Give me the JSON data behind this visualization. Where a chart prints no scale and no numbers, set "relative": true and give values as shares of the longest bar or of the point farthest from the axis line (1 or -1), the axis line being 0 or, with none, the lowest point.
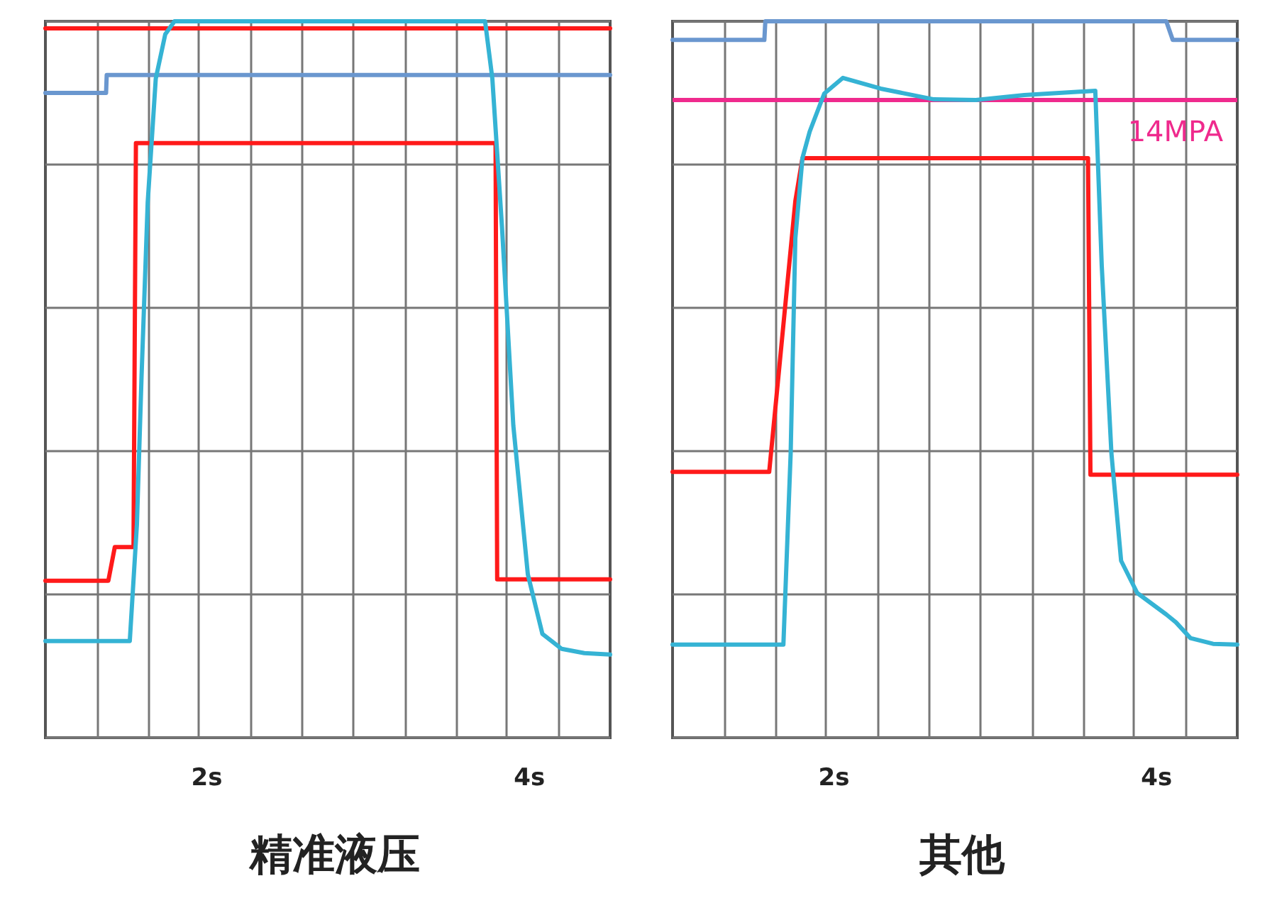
{
  "chart_data": [
    {
      "type": "line",
      "title": "精准液压",
      "relative": true,
      "grid": true,
      "marker": "none",
      "line_style": "solid",
      "xlim": [
        1,
        4.5
      ],
      "xticks": [
        {
          "value": 1.32,
          "label": null
        },
        {
          "value": 1.64,
          "label": null
        },
        {
          "value": 1.95,
          "label": null
        },
        {
          "value": 2,
          "label": "2s"
        },
        {
          "value": 2.27,
          "label": null
        },
        {
          "value": 2.59,
          "label": null
        },
        {
          "value": 2.91,
          "label": null
        },
        {
          "value": 3.23,
          "label": null
        },
        {
          "value": 3.55,
          "label": null
        },
        {
          "value": 3.86,
          "label": null
        },
        {
          "value": 4,
          "label": "4s"
        },
        {
          "value": 4.18,
          "label": null
        }
      ],
      "series": [
        {
          "color": "#ff1a1a",
          "x": [
            1,
            4.5
          ],
          "values": [
            0.99,
            0.99
          ]
        },
        {
          "color": "#6a97cf",
          "x": [
            1,
            1.376,
            1.38,
            4.5
          ],
          "values": [
            0.9,
            0.9,
            0.925,
            0.925
          ]
        },
        {
          "color": "#ff1a1a",
          "x": [
            1,
            1.39,
            1.43,
            1.546,
            1.561,
            3.79,
            3.8,
            4.5
          ],
          "values": [
            0.219,
            0.219,
            0.266,
            0.266,
            0.83,
            0.83,
            0.221,
            0.221
          ]
        },
        {
          "color": "#35b3d4",
          "x": [
            1,
            1.523,
            1.567,
            1.596,
            1.634,
            1.684,
            1.743,
            1.8,
            3.725,
            3.77,
            3.83,
            3.9,
            3.99,
            4.08,
            4.2,
            4.34,
            4.5
          ],
          "values": [
            0.135,
            0.135,
            0.297,
            0.505,
            0.747,
            0.92,
            0.982,
            1,
            1,
            0.92,
            0.712,
            0.436,
            0.228,
            0.145,
            0.124,
            0.118,
            0.116
          ]
        }
      ]
    },
    {
      "type": "line",
      "title": "其他",
      "relative": true,
      "grid": true,
      "marker": "none",
      "line_style": "solid",
      "xlim": [
        1,
        4.5
      ],
      "xticks": [
        {
          "value": 1.32,
          "label": null
        },
        {
          "value": 1.64,
          "label": null
        },
        {
          "value": 1.95,
          "label": null
        },
        {
          "value": 2,
          "label": "2s"
        },
        {
          "value": 2.27,
          "label": null
        },
        {
          "value": 2.59,
          "label": null
        },
        {
          "value": 2.91,
          "label": null
        },
        {
          "value": 3.23,
          "label": null
        },
        {
          "value": 3.55,
          "label": null
        },
        {
          "value": 3.86,
          "label": null
        },
        {
          "value": 4,
          "label": "4s"
        },
        {
          "value": 4.18,
          "label": null
        }
      ],
      "ref_lines": [
        {
          "axis": "y",
          "value": 0.891,
          "label": "14MPA",
          "color": "#ef2a8d"
        }
      ],
      "series": [
        {
          "color": "#6a97cf",
          "x": [
            1,
            1.569,
            1.575,
            4.06,
            4.1,
            4.5
          ],
          "values": [
            0.974,
            0.974,
            1,
            1,
            0.974,
            0.974
          ]
        },
        {
          "color": "#ff1a1a",
          "x": [
            1,
            1.599,
            1.761,
            1.805,
            3.575,
            3.59,
            4.5
          ],
          "values": [
            0.371,
            0.371,
            0.749,
            0.809,
            0.809,
            0.367,
            0.367
          ]
        },
        {
          "color": "#35b3d4",
          "x": [
            1,
            1.687,
            1.732,
            1.761,
            1.805,
            1.85,
            1.94,
            2.056,
            2.29,
            2.62,
            2.88,
            3.18,
            3.62,
            3.66,
            3.72,
            3.78,
            3.88,
            4.06,
            4.12,
            4.21,
            4.35,
            4.5
          ],
          "values": [
            0.13,
            0.13,
            0.397,
            0.697,
            0.809,
            0.846,
            0.899,
            0.921,
            0.906,
            0.891,
            0.89,
            0.897,
            0.903,
            0.659,
            0.397,
            0.247,
            0.202,
            0.172,
            0.161,
            0.139,
            0.131,
            0.13
          ]
        }
      ]
    }
  ]
}
